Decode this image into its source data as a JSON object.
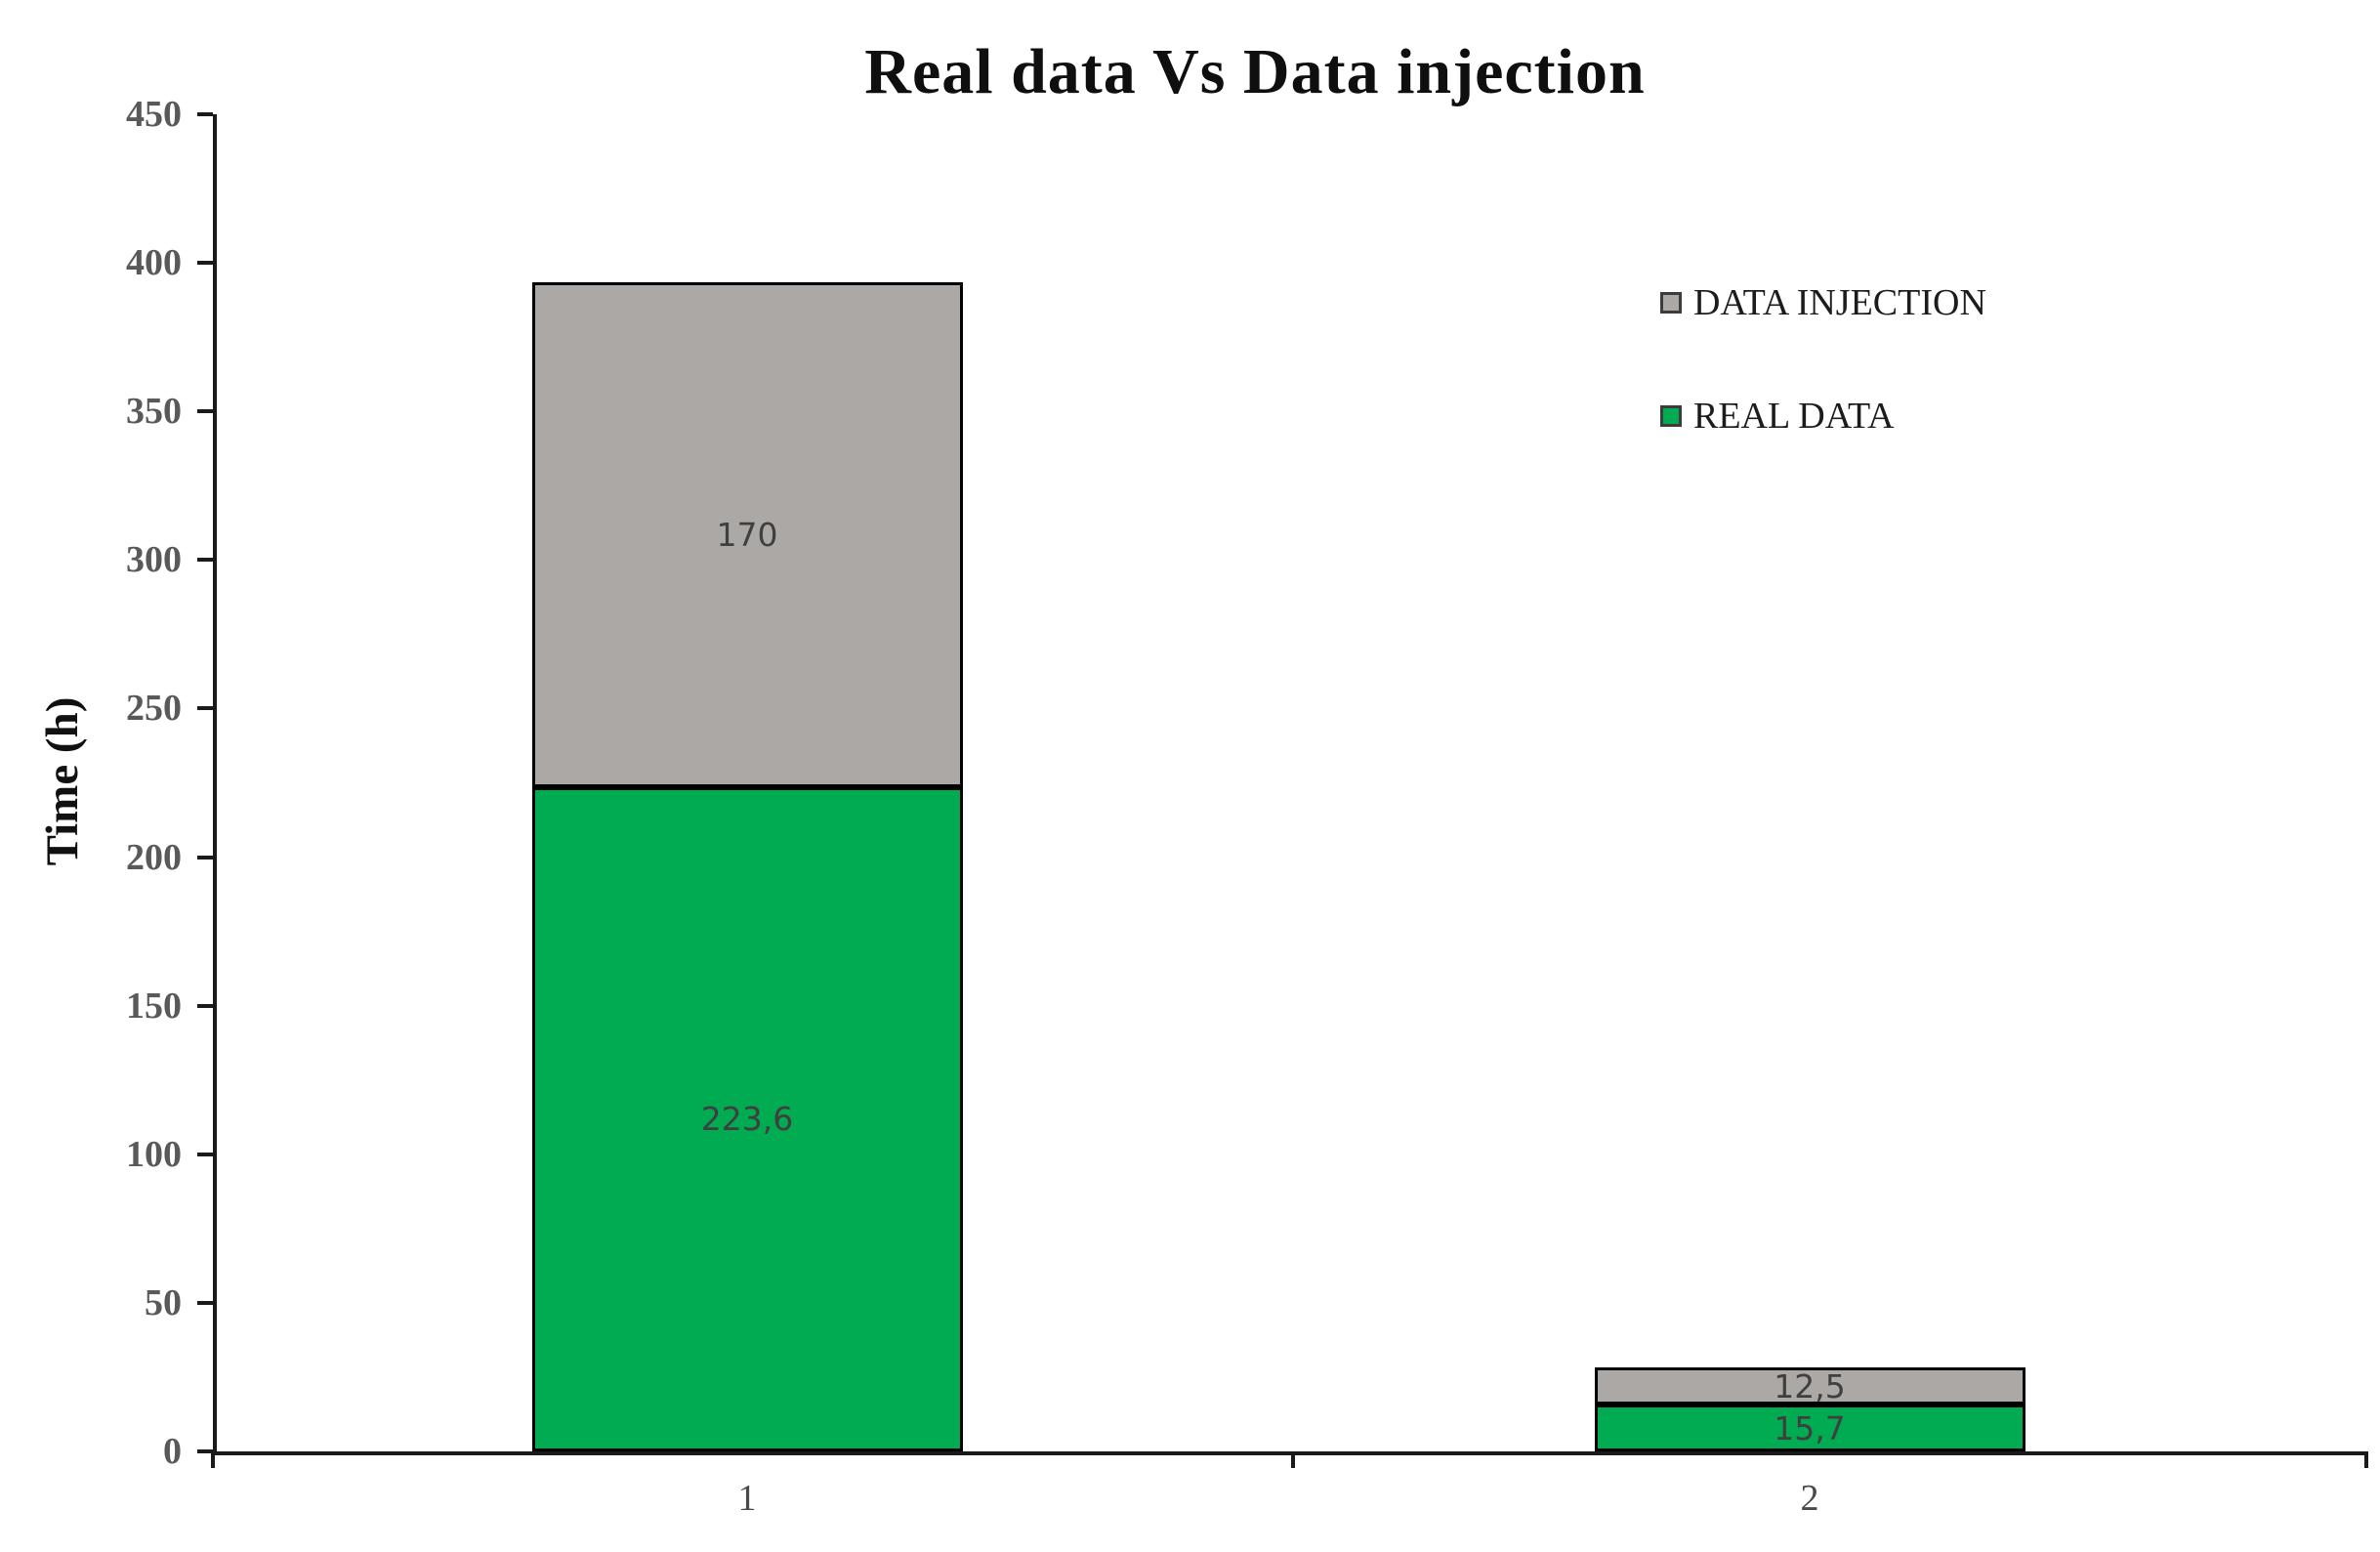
{
  "chart_data": {
    "type": "bar",
    "stacked": true,
    "title": "Real data Vs Data injection",
    "ylabel": "Time (h)",
    "xlabel": "",
    "categories": [
      "1",
      "2"
    ],
    "series": [
      {
        "name": "REAL DATA",
        "color": "#00AB52",
        "values": [
          223.6,
          15.7
        ],
        "labels": [
          "223,6",
          "15,7"
        ]
      },
      {
        "name": "DATA INJECTION",
        "color": "#ACA8A5",
        "values": [
          170,
          12.5
        ],
        "labels": [
          "170",
          "12,5"
        ]
      }
    ],
    "ylim": [
      0,
      450
    ],
    "ytick_step": 50,
    "yticks": [
      0,
      50,
      100,
      150,
      200,
      250,
      300,
      350,
      400,
      450
    ],
    "grid": false,
    "legend_position": "right-top",
    "legend_order": [
      "DATA INJECTION",
      "REAL DATA"
    ],
    "bar_border_color": "#000000",
    "axis_color": "#1a1a1a"
  }
}
